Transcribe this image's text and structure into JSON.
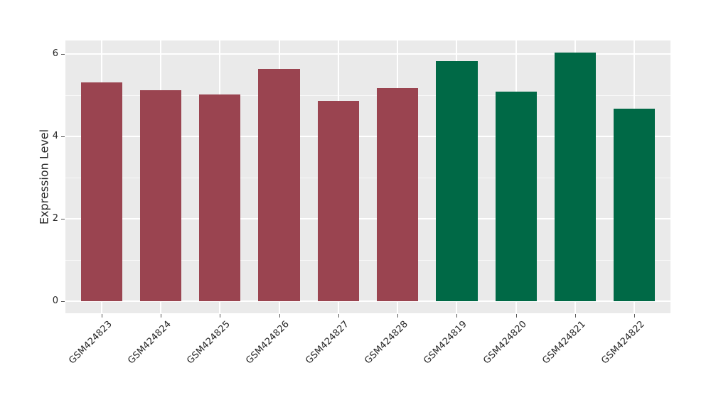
{
  "figure": {
    "background_color": "#FFFFFF",
    "panel_background_color": "#EAEAEA",
    "gridline_color": "#FFFFFF",
    "text_color": "#262626"
  },
  "chart_data": {
    "type": "bar",
    "title": "",
    "xlabel": "",
    "ylabel": "Expression Level",
    "categories": [
      "GSM424823",
      "GSM424824",
      "GSM424825",
      "GSM424826",
      "GSM424827",
      "GSM424828",
      "GSM424819",
      "GSM424820",
      "GSM424821",
      "GSM424822"
    ],
    "values": [
      5.31,
      5.13,
      5.02,
      5.64,
      4.87,
      5.18,
      5.83,
      5.08,
      6.03,
      4.67
    ],
    "bar_colors": [
      "#9A4450",
      "#9A4450",
      "#9A4450",
      "#9A4450",
      "#9A4450",
      "#9A4450",
      "#006946",
      "#006946",
      "#006946",
      "#006946"
    ],
    "group_color_red": "#9A4450",
    "group_color_green": "#006946",
    "yticks": [
      0,
      2,
      4,
      6
    ],
    "ytick_labels": [
      "0",
      "2",
      "4",
      "6"
    ],
    "minor_yticks": [
      1,
      3,
      5
    ],
    "ylim": [
      -0.3,
      6.33
    ],
    "bar_width_fraction": 0.7,
    "xtick_rotation_deg": 45,
    "grid": true,
    "legend": false
  }
}
